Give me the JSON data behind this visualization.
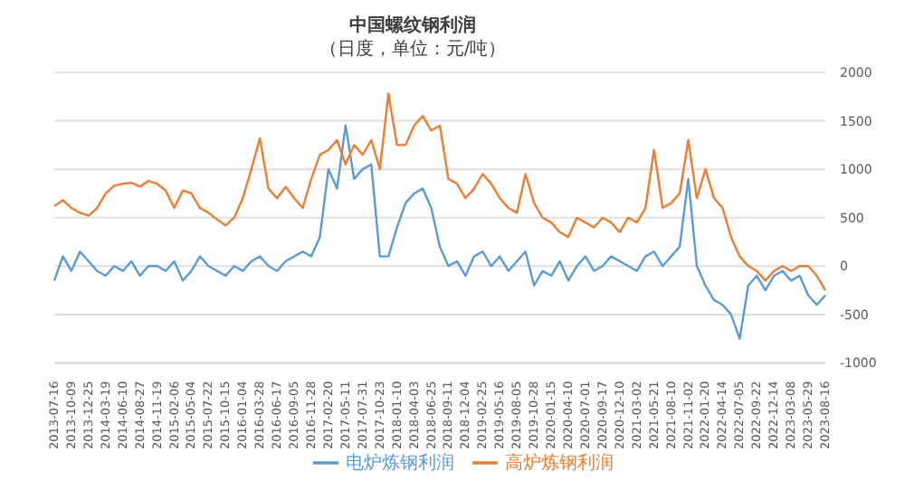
{
  "chart_data": {
    "type": "line",
    "title": "中国螺纹钢利润",
    "subtitle": "（日度，单位：元/吨）",
    "categories": [
      "2013-07-16",
      null,
      "2013-10-09",
      null,
      "2013-12-25",
      null,
      "2014-03-19",
      null,
      "2014-06-10",
      null,
      "2014-08-27",
      null,
      "2014-11-19",
      null,
      "2015-02-06",
      null,
      "2015-05-04",
      null,
      "2015-07-22",
      null,
      "2015-10-15",
      null,
      "2016-01-04",
      null,
      "2016-03-28",
      null,
      "2016-06-17",
      null,
      "2016-09-05",
      null,
      "2016-11-28",
      null,
      "2017-02-20",
      null,
      "2017-05-11",
      null,
      "2017-07-31",
      null,
      "2017-10-23",
      null,
      "2018-01-10",
      null,
      "2018-04-03",
      null,
      "2018-06-25",
      null,
      "2018-09-11",
      null,
      "2018-12-04",
      null,
      "2019-02-25",
      null,
      "2019-05-16",
      null,
      "2019-08-05",
      null,
      "2019-10-28",
      null,
      "2020-01-15",
      null,
      "2020-04-10",
      null,
      "2020-07-01",
      null,
      "2020-09-17",
      null,
      "2020-12-10",
      null,
      "2021-03-02",
      null,
      "2021-05-21",
      null,
      "2021-08-10",
      null,
      "2021-11-02",
      null,
      "2022-01-20",
      null,
      "2022-04-14",
      null,
      "2022-07-05",
      null,
      "2022-09-22",
      null,
      "2022-12-14",
      null,
      "2023-03-08",
      null,
      "2023-05-29",
      null,
      "2023-08-16"
    ],
    "series": [
      {
        "name": "电炉炼钢利润",
        "color": "#5b9bd5",
        "values": [
          -150,
          100,
          -50,
          150,
          50,
          -50,
          -100,
          0,
          -50,
          50,
          -100,
          0,
          0,
          -50,
          50,
          -150,
          -50,
          100,
          0,
          -50,
          -100,
          0,
          -50,
          50,
          100,
          0,
          -50,
          50,
          100,
          150,
          100,
          300,
          1000,
          800,
          1450,
          900,
          1000,
          1050,
          100,
          100,
          400,
          650,
          750,
          800,
          600,
          200,
          0,
          50,
          -100,
          100,
          150,
          0,
          100,
          -50,
          50,
          150,
          -200,
          -50,
          -100,
          50,
          -150,
          0,
          100,
          -50,
          0,
          100,
          50,
          0,
          -50,
          100,
          150,
          0,
          100,
          200,
          900,
          0,
          -200,
          -350,
          -400,
          -500,
          -750,
          -200,
          -100,
          -250,
          -100,
          -50,
          -150,
          -100,
          -300,
          -400,
          -300
        ]
      },
      {
        "name": "高炉炼钢利润",
        "color": "#ed7d31",
        "values": [
          620,
          680,
          600,
          550,
          520,
          600,
          750,
          830,
          850,
          860,
          820,
          880,
          850,
          780,
          600,
          780,
          750,
          600,
          550,
          480,
          420,
          500,
          700,
          1000,
          1320,
          800,
          700,
          820,
          700,
          600,
          900,
          1150,
          1200,
          1300,
          1050,
          1250,
          1150,
          1300,
          1000,
          1780,
          1250,
          1250,
          1450,
          1550,
          1400,
          1450,
          900,
          850,
          700,
          800,
          950,
          850,
          700,
          600,
          550,
          950,
          650,
          500,
          450,
          350,
          300,
          500,
          450,
          400,
          500,
          450,
          350,
          500,
          450,
          600,
          1200,
          600,
          650,
          750,
          1300,
          700,
          1000,
          700,
          600,
          300,
          100,
          0,
          -50,
          -150,
          -50,
          0,
          -50,
          0,
          0,
          -100,
          -250
        ]
      }
    ],
    "ylim": [
      -1000,
      2000
    ],
    "yticks": [
      -1000,
      -500,
      0,
      500,
      1000,
      1500,
      2000
    ],
    "grid": "y",
    "legend": "bottom",
    "marker": "none",
    "line_style": "solid"
  }
}
